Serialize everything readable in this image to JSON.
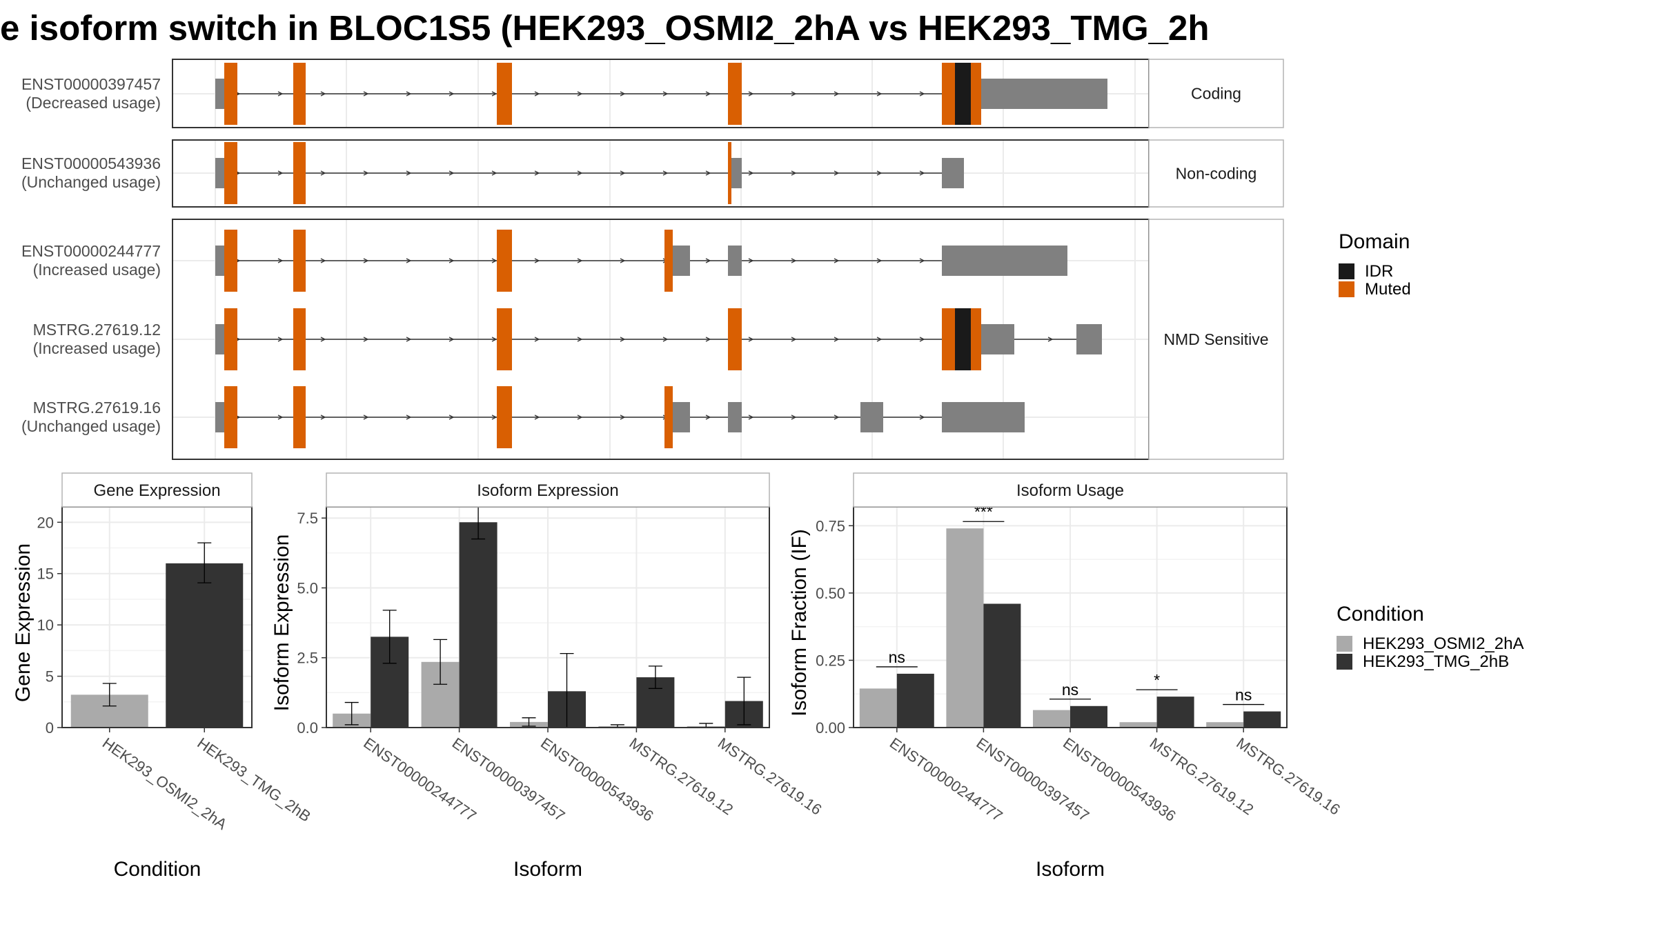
{
  "title": "e isoform switch in BLOC1S5 (HEK293_OSMI2_2hA vs HEK293_TMG_2h",
  "colors": {
    "muted": "#d95f02",
    "idr": "#1a1a1a",
    "utr": "#808080",
    "cond_a": "#aaaaaa",
    "cond_b": "#333333",
    "grid": "#ebebeb",
    "strip": "#ffffff",
    "border": "#333333"
  },
  "transcript_plot": {
    "groups": [
      {
        "label": "Coding",
        "tracks": [
          {
            "id": "ENST00000397457",
            "usage": "(Decreased usage)"
          }
        ]
      },
      {
        "label": "Non-coding",
        "tracks": [
          {
            "id": "ENST00000543936",
            "usage": "(Unchanged usage)"
          }
        ]
      },
      {
        "label": "NMD Sensitive",
        "tracks": [
          {
            "id": "ENST00000244777",
            "usage": "(Increased usage)"
          },
          {
            "id": "MSTRG.27619.12",
            "usage": "(Increased usage)"
          },
          {
            "id": "MSTRG.27619.16",
            "usage": "(Unchanged usage)"
          }
        ]
      }
    ],
    "legend": {
      "title": "Domain",
      "items": [
        {
          "label": "IDR",
          "color_key": "idr"
        },
        {
          "label": "Muted",
          "color_key": "muted"
        }
      ]
    }
  },
  "chart_data": [
    {
      "type": "bar",
      "title": "Gene Expression",
      "xlabel": "Condition",
      "ylabel": "Gene Expression",
      "ylim": [
        0,
        21.5
      ],
      "yticks": [
        0,
        5,
        10,
        15,
        20
      ],
      "categories": [
        "HEK293_OSMI2_2hA",
        "HEK293_TMG_2hB"
      ],
      "series": [
        {
          "name": "HEK293_OSMI2_2hA",
          "values": [
            3.2,
            null
          ],
          "err_low": [
            2.1,
            null
          ],
          "err_high": [
            4.3,
            null
          ]
        },
        {
          "name": "HEK293_TMG_2hB",
          "values": [
            null,
            16.0
          ],
          "err_low": [
            null,
            14.1
          ],
          "err_high": [
            null,
            18.0
          ]
        }
      ]
    },
    {
      "type": "bar",
      "title": "Isoform Expression",
      "xlabel": "Isoform",
      "ylabel": "Isoform Expression",
      "ylim": [
        0,
        7.9
      ],
      "yticks": [
        0.0,
        2.5,
        5.0,
        7.5
      ],
      "categories": [
        "ENST00000244777",
        "ENST00000397457",
        "ENST00000543936",
        "MSTRG.27619.12",
        "MSTRG.27619.16"
      ],
      "series": [
        {
          "name": "HEK293_OSMI2_2hA",
          "values": [
            0.5,
            2.35,
            0.2,
            0.05,
            0.05
          ],
          "err_low": [
            0.1,
            1.55,
            0.05,
            0.0,
            0.0
          ],
          "err_high": [
            0.9,
            3.15,
            0.35,
            0.1,
            0.15
          ]
        },
        {
          "name": "HEK293_TMG_2hB",
          "values": [
            3.25,
            7.35,
            1.3,
            1.8,
            0.95
          ],
          "err_low": [
            2.3,
            6.75,
            0.0,
            1.4,
            0.1
          ],
          "err_high": [
            4.2,
            7.95,
            2.65,
            2.2,
            1.8
          ]
        }
      ]
    },
    {
      "type": "bar",
      "title": "Isoform Usage",
      "xlabel": "Isoform",
      "ylabel": "Isoform Fraction (IF)",
      "ylim": [
        0,
        0.82
      ],
      "yticks": [
        0.0,
        0.25,
        0.5,
        0.75
      ],
      "categories": [
        "ENST00000244777",
        "ENST00000397457",
        "ENST00000543936",
        "MSTRG.27619.12",
        "MSTRG.27619.16"
      ],
      "series": [
        {
          "name": "HEK293_OSMI2_2hA",
          "values": [
            0.145,
            0.74,
            0.065,
            0.02,
            0.02
          ]
        },
        {
          "name": "HEK293_TMG_2hB",
          "values": [
            0.2,
            0.46,
            0.08,
            0.115,
            0.06
          ]
        }
      ],
      "significance": [
        "ns",
        "***",
        "ns",
        "*",
        "ns"
      ]
    }
  ],
  "condition_legend": {
    "title": "Condition",
    "items": [
      {
        "label": "HEK293_OSMI2_2hA",
        "color_key": "cond_a"
      },
      {
        "label": "HEK293_TMG_2hB",
        "color_key": "cond_b"
      }
    ]
  }
}
